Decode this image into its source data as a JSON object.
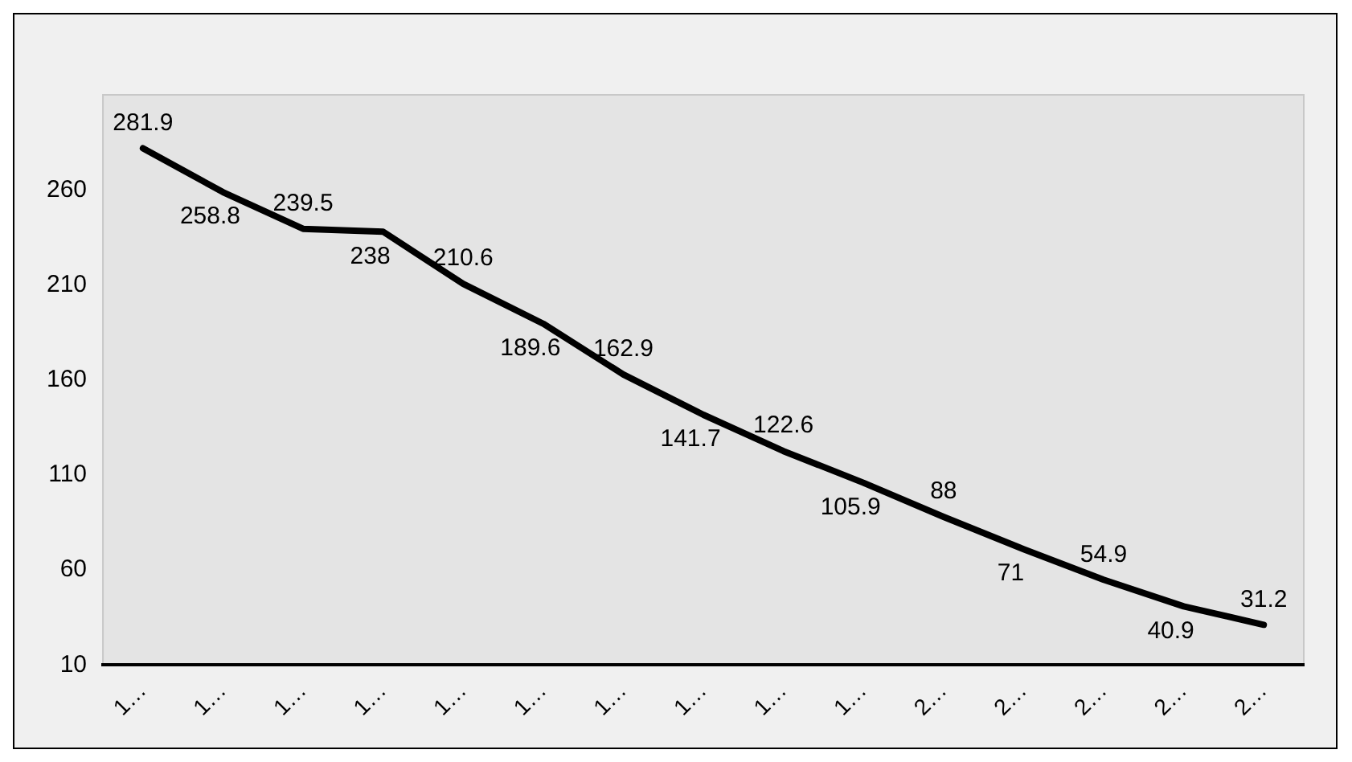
{
  "chart_data": {
    "type": "line",
    "categories": [
      "1…",
      "1…",
      "1…",
      "1…",
      "1…",
      "1…",
      "1…",
      "1…",
      "1…",
      "1…",
      "2…",
      "2…",
      "2…",
      "2…",
      "2…"
    ],
    "series": [
      {
        "color": "#000000",
        "values": [
          281.9,
          258.8,
          239.5,
          238,
          210.6,
          189.6,
          162.9,
          141.7,
          122.6,
          105.9,
          88,
          71,
          54.9,
          40.9,
          31.2
        ]
      }
    ],
    "ylim": [
      10,
      310
    ],
    "yticks": [
      10,
      60,
      110,
      160,
      210,
      260
    ],
    "grid": false,
    "legend": false,
    "marker": "none",
    "line_style": "solid",
    "data_labels": true
  }
}
